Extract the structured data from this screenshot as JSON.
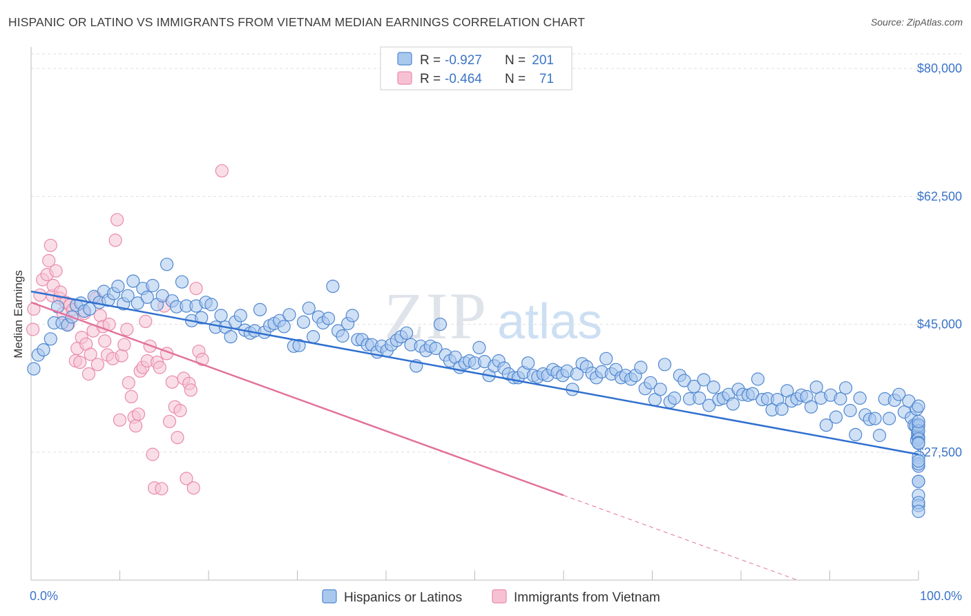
{
  "title": "HISPANIC OR LATINO VS IMMIGRANTS FROM VIETNAM MEDIAN EARNINGS CORRELATION CHART",
  "source": "Source: ZipAtlas.com",
  "watermark": {
    "zip": "ZIP",
    "atlas": "atlas"
  },
  "colors": {
    "blue_fill": "#a9c8ee",
    "blue_stroke": "#4f86cf",
    "blue_line": "#2f6fcf",
    "pink_fill": "#f6c2d3",
    "pink_stroke": "#e98aab",
    "pink_line": "#e2729b",
    "tick_text": "#3b74c9",
    "grid": "#dddddd"
  },
  "legend_top": {
    "rows": [
      {
        "r_label": "R =",
        "r_value": "-0.927",
        "n_label": "N =",
        "n_value": "201"
      },
      {
        "r_label": "R =",
        "r_value": "-0.464",
        "n_label": "N =",
        "n_value": "71"
      }
    ]
  },
  "legend_bottom": [
    "Hispanics or Latinos",
    "Immigrants from Vietnam"
  ],
  "chart_data": {
    "type": "scatter",
    "ylabel": "Median Earnings",
    "xlim": [
      0,
      100
    ],
    "ylim": [
      10000,
      82000
    ],
    "x_tick_labels": [
      "0.0%",
      "100.0%"
    ],
    "y_ticks": [
      27500,
      45000,
      62500,
      80000
    ],
    "y_tick_labels": [
      "$27,500",
      "$45,000",
      "$62,500",
      "$80,000"
    ],
    "grid": true,
    "legend_placement": "top-center",
    "series": [
      {
        "name": "Hispanics or Latinos",
        "color": "#a9c8ee",
        "trend": {
          "x": [
            0,
            100
          ],
          "y": [
            49500,
            27200
          ]
        },
        "points": [
          [
            0.3,
            38900
          ],
          [
            0.8,
            40800
          ],
          [
            1.4,
            41500
          ],
          [
            2.2,
            43000
          ],
          [
            2.6,
            45200
          ],
          [
            3.0,
            47400
          ],
          [
            3.5,
            45200
          ],
          [
            4.1,
            44900
          ],
          [
            4.6,
            46000
          ],
          [
            5.1,
            47600
          ],
          [
            5.6,
            47900
          ],
          [
            6.0,
            46800
          ],
          [
            6.6,
            47100
          ],
          [
            7.1,
            48800
          ],
          [
            7.7,
            48000
          ],
          [
            8.2,
            49500
          ],
          [
            8.7,
            48300
          ],
          [
            9.3,
            49200
          ],
          [
            9.8,
            50200
          ],
          [
            10.4,
            47800
          ],
          [
            10.9,
            48900
          ],
          [
            11.5,
            50900
          ],
          [
            12.0,
            47900
          ],
          [
            12.6,
            49900
          ],
          [
            13.1,
            48700
          ],
          [
            13.7,
            50300
          ],
          [
            14.2,
            47700
          ],
          [
            14.8,
            48900
          ],
          [
            15.3,
            53200
          ],
          [
            15.9,
            48200
          ],
          [
            16.4,
            47400
          ],
          [
            17.0,
            50800
          ],
          [
            17.5,
            47500
          ],
          [
            18.1,
            45500
          ],
          [
            18.6,
            47500
          ],
          [
            19.2,
            45900
          ],
          [
            19.7,
            48000
          ],
          [
            20.3,
            47700
          ],
          [
            20.8,
            44600
          ],
          [
            21.4,
            46200
          ],
          [
            21.9,
            44600
          ],
          [
            22.5,
            43300
          ],
          [
            23.0,
            45300
          ],
          [
            23.6,
            46200
          ],
          [
            24.1,
            44200
          ],
          [
            24.7,
            43800
          ],
          [
            25.2,
            44100
          ],
          [
            25.8,
            47000
          ],
          [
            26.3,
            43900
          ],
          [
            26.9,
            44800
          ],
          [
            27.4,
            45100
          ],
          [
            28.0,
            45500
          ],
          [
            28.5,
            44700
          ],
          [
            29.1,
            46300
          ],
          [
            29.6,
            42000
          ],
          [
            30.2,
            42100
          ],
          [
            30.7,
            45300
          ],
          [
            31.3,
            47200
          ],
          [
            31.8,
            43300
          ],
          [
            32.4,
            46000
          ],
          [
            32.9,
            45200
          ],
          [
            33.5,
            45800
          ],
          [
            34.0,
            50200
          ],
          [
            34.6,
            44100
          ],
          [
            35.1,
            43400
          ],
          [
            35.7,
            45100
          ],
          [
            36.2,
            46200
          ],
          [
            36.8,
            42900
          ],
          [
            37.3,
            42900
          ],
          [
            37.9,
            42200
          ],
          [
            38.4,
            42200
          ],
          [
            39.0,
            41200
          ],
          [
            39.5,
            42000
          ],
          [
            40.1,
            41400
          ],
          [
            40.6,
            42200
          ],
          [
            41.2,
            42800
          ],
          [
            41.7,
            43300
          ],
          [
            42.3,
            43800
          ],
          [
            42.8,
            42200
          ],
          [
            43.4,
            39300
          ],
          [
            43.9,
            42000
          ],
          [
            44.5,
            41400
          ],
          [
            45.0,
            42000
          ],
          [
            45.6,
            41700
          ],
          [
            46.1,
            45000
          ],
          [
            46.7,
            40800
          ],
          [
            47.2,
            40000
          ],
          [
            47.8,
            40500
          ],
          [
            48.3,
            39100
          ],
          [
            48.9,
            39700
          ],
          [
            49.4,
            40000
          ],
          [
            50.0,
            39700
          ],
          [
            50.5,
            41800
          ],
          [
            51.1,
            39900
          ],
          [
            51.6,
            38000
          ],
          [
            52.2,
            39300
          ],
          [
            52.7,
            40000
          ],
          [
            53.3,
            39000
          ],
          [
            53.8,
            38200
          ],
          [
            54.4,
            37700
          ],
          [
            54.9,
            37700
          ],
          [
            55.5,
            38400
          ],
          [
            56.0,
            39700
          ],
          [
            56.6,
            38000
          ],
          [
            57.1,
            37800
          ],
          [
            57.7,
            38200
          ],
          [
            58.2,
            38000
          ],
          [
            58.8,
            38800
          ],
          [
            59.3,
            38400
          ],
          [
            59.9,
            38000
          ],
          [
            60.4,
            38600
          ],
          [
            61.0,
            36100
          ],
          [
            61.5,
            38200
          ],
          [
            62.1,
            39600
          ],
          [
            62.6,
            39200
          ],
          [
            63.2,
            38300
          ],
          [
            63.7,
            37700
          ],
          [
            64.3,
            38500
          ],
          [
            64.8,
            40300
          ],
          [
            65.4,
            38200
          ],
          [
            65.9,
            38800
          ],
          [
            66.5,
            37700
          ],
          [
            67.0,
            38000
          ],
          [
            67.6,
            37500
          ],
          [
            68.1,
            38000
          ],
          [
            68.7,
            39100
          ],
          [
            69.2,
            36200
          ],
          [
            69.8,
            37000
          ],
          [
            70.3,
            34700
          ],
          [
            70.9,
            36100
          ],
          [
            71.4,
            39500
          ],
          [
            72.0,
            34400
          ],
          [
            72.5,
            34900
          ],
          [
            73.1,
            38000
          ],
          [
            73.6,
            37300
          ],
          [
            74.2,
            34800
          ],
          [
            74.7,
            36500
          ],
          [
            75.3,
            34900
          ],
          [
            75.8,
            37400
          ],
          [
            76.4,
            33900
          ],
          [
            76.9,
            36400
          ],
          [
            77.5,
            34700
          ],
          [
            78.0,
            34900
          ],
          [
            78.6,
            35400
          ],
          [
            79.1,
            34100
          ],
          [
            79.7,
            36100
          ],
          [
            80.2,
            35400
          ],
          [
            80.8,
            35300
          ],
          [
            81.3,
            35500
          ],
          [
            81.9,
            37500
          ],
          [
            82.4,
            34700
          ],
          [
            83.0,
            34800
          ],
          [
            83.5,
            33300
          ],
          [
            84.1,
            34700
          ],
          [
            84.6,
            33400
          ],
          [
            85.2,
            35900
          ],
          [
            85.7,
            34500
          ],
          [
            86.3,
            34800
          ],
          [
            86.8,
            35300
          ],
          [
            87.4,
            35100
          ],
          [
            87.9,
            33700
          ],
          [
            88.5,
            36400
          ],
          [
            89.0,
            34900
          ],
          [
            89.6,
            31200
          ],
          [
            90.1,
            35300
          ],
          [
            90.7,
            32300
          ],
          [
            91.2,
            34800
          ],
          [
            91.8,
            36300
          ],
          [
            92.3,
            33200
          ],
          [
            92.9,
            29900
          ],
          [
            93.4,
            34900
          ],
          [
            94.0,
            32600
          ],
          [
            94.5,
            32000
          ],
          [
            95.1,
            32100
          ],
          [
            95.6,
            29800
          ],
          [
            96.2,
            34800
          ],
          [
            96.7,
            32100
          ],
          [
            97.3,
            34600
          ],
          [
            97.8,
            35400
          ],
          [
            98.4,
            33000
          ],
          [
            98.9,
            34500
          ],
          [
            99.2,
            32200
          ],
          [
            99.5,
            31200
          ],
          [
            99.7,
            31100
          ],
          [
            99.8,
            33400
          ],
          [
            99.8,
            29100
          ],
          [
            99.9,
            30200
          ],
          [
            99.9,
            29700
          ],
          [
            100.0,
            33800
          ],
          [
            100.0,
            31300
          ],
          [
            100.0,
            31100
          ],
          [
            100.0,
            29500
          ],
          [
            100.0,
            30400
          ],
          [
            100.0,
            29300
          ],
          [
            100.0,
            28800
          ],
          [
            100.0,
            31700
          ],
          [
            100.0,
            26800
          ],
          [
            100.0,
            28700
          ],
          [
            100.0,
            25600
          ],
          [
            100.0,
            25900
          ],
          [
            100.0,
            26300
          ],
          [
            100.0,
            23500
          ],
          [
            100.0,
            23500
          ],
          [
            100.0,
            21600
          ],
          [
            100.0,
            20200
          ],
          [
            100.0,
            20600
          ],
          [
            100.0,
            19400
          ]
        ]
      },
      {
        "name": "Immigrants from Vietnam",
        "color": "#f6c2d3",
        "trend": {
          "x": [
            0,
            60
          ],
          "y": [
            48000,
            21600
          ]
        },
        "trend_dashed": {
          "x": [
            60,
            100
          ],
          "y": [
            21600,
            4000
          ]
        },
        "points": [
          [
            0.2,
            44300
          ],
          [
            0.3,
            47100
          ],
          [
            1.0,
            49000
          ],
          [
            1.3,
            51100
          ],
          [
            1.8,
            51800
          ],
          [
            2.0,
            53700
          ],
          [
            2.2,
            55800
          ],
          [
            2.4,
            48900
          ],
          [
            2.5,
            50300
          ],
          [
            2.8,
            52300
          ],
          [
            3.2,
            48600
          ],
          [
            3.3,
            49400
          ],
          [
            3.6,
            46500
          ],
          [
            3.9,
            48000
          ],
          [
            4.2,
            45000
          ],
          [
            4.4,
            47600
          ],
          [
            4.7,
            47000
          ],
          [
            5.0,
            40000
          ],
          [
            5.2,
            41700
          ],
          [
            5.5,
            39800
          ],
          [
            5.7,
            43200
          ],
          [
            6.0,
            46500
          ],
          [
            6.2,
            42300
          ],
          [
            6.5,
            38200
          ],
          [
            6.7,
            40900
          ],
          [
            7.0,
            44100
          ],
          [
            7.3,
            48600
          ],
          [
            7.5,
            39500
          ],
          [
            7.8,
            46200
          ],
          [
            8.1,
            44700
          ],
          [
            8.3,
            42700
          ],
          [
            8.6,
            40800
          ],
          [
            8.8,
            45000
          ],
          [
            9.2,
            40300
          ],
          [
            9.5,
            56500
          ],
          [
            9.7,
            59300
          ],
          [
            10.0,
            31900
          ],
          [
            10.2,
            40700
          ],
          [
            10.5,
            42200
          ],
          [
            10.8,
            44300
          ],
          [
            11.0,
            37000
          ],
          [
            11.3,
            35100
          ],
          [
            11.6,
            32300
          ],
          [
            11.8,
            31100
          ],
          [
            12.1,
            32700
          ],
          [
            12.3,
            38600
          ],
          [
            12.6,
            39100
          ],
          [
            12.9,
            45400
          ],
          [
            13.1,
            40000
          ],
          [
            13.4,
            42000
          ],
          [
            13.7,
            27200
          ],
          [
            13.9,
            22600
          ],
          [
            14.2,
            39800
          ],
          [
            14.5,
            39100
          ],
          [
            14.7,
            22500
          ],
          [
            15.0,
            47500
          ],
          [
            15.3,
            41000
          ],
          [
            15.6,
            31700
          ],
          [
            15.9,
            37100
          ],
          [
            16.2,
            33700
          ],
          [
            16.5,
            29500
          ],
          [
            16.8,
            33200
          ],
          [
            17.2,
            37600
          ],
          [
            17.5,
            23900
          ],
          [
            17.8,
            36900
          ],
          [
            18.0,
            36000
          ],
          [
            18.3,
            22600
          ],
          [
            18.6,
            49900
          ],
          [
            18.9,
            41300
          ],
          [
            19.3,
            40200
          ],
          [
            21.5,
            66000
          ]
        ]
      }
    ]
  }
}
